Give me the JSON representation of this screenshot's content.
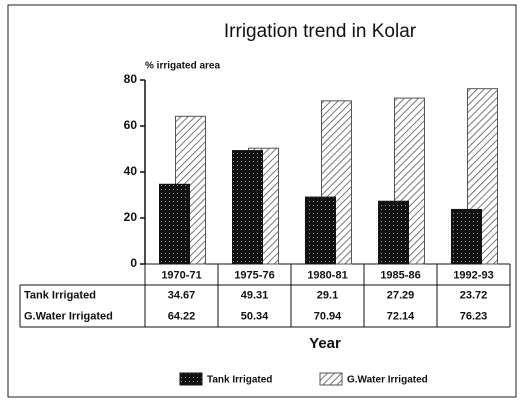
{
  "chart_data": {
    "type": "bar",
    "title": "Irrigation trend in Kolar",
    "y_label": "% irrigated area",
    "x_label": "Year",
    "categories": [
      "1970-71",
      "1975-76",
      "1980-81",
      "1985-86",
      "1992-93"
    ],
    "series": [
      {
        "name": "Tank Irrigated",
        "color": "#111111",
        "values": [
          34.67,
          49.31,
          29.1,
          27.29,
          23.72
        ]
      },
      {
        "name": "G.Water Irrigated",
        "color": "#555555",
        "values": [
          64.22,
          50.34,
          70.94,
          72.14,
          76.23
        ]
      }
    ],
    "ylim": [
      0,
      80
    ],
    "yticks": [
      0,
      20,
      40,
      60,
      80
    ],
    "legend": "bottom"
  }
}
